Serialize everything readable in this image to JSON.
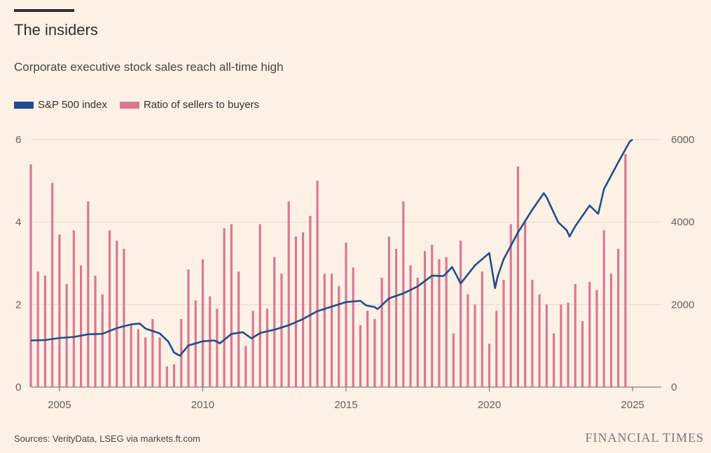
{
  "title": "The insiders",
  "subtitle": "Corporate executive stock sales reach all-time high",
  "source": "Sources: VerityData, LSEG via markets.ft.com",
  "brand": "FINANCIAL TIMES",
  "colors": {
    "background": "#fdf1e5",
    "sp500": "#1f4e8c",
    "ratio": "#d9788f",
    "grid": "#e6d9cc"
  },
  "chart_data": {
    "type": "bar",
    "legend_position": "top-left",
    "series": [
      {
        "name": "S&P 500 index",
        "type": "line",
        "axis": "right",
        "x": [
          2004.0,
          2004.5,
          2005.0,
          2005.5,
          2006.0,
          2006.5,
          2007.0,
          2007.5,
          2007.8,
          2008.0,
          2008.5,
          2008.8,
          2009.0,
          2009.2,
          2009.5,
          2010.0,
          2010.4,
          2010.6,
          2011.0,
          2011.4,
          2011.7,
          2012.0,
          2012.5,
          2013.0,
          2013.5,
          2014.0,
          2014.5,
          2015.0,
          2015.5,
          2015.7,
          2016.0,
          2016.1,
          2016.5,
          2017.0,
          2017.5,
          2018.0,
          2018.4,
          2018.7,
          2018.9,
          2019.0,
          2019.5,
          2020.0,
          2020.2,
          2020.3,
          2020.5,
          2021.0,
          2021.5,
          2021.9,
          2022.0,
          2022.4,
          2022.7,
          2022.8,
          2023.0,
          2023.5,
          2023.8,
          2024.0,
          2024.5,
          2024.9,
          2025.0
        ],
        "values": [
          1130,
          1140,
          1190,
          1215,
          1280,
          1290,
          1430,
          1520,
          1540,
          1420,
          1300,
          1100,
          840,
          760,
          1010,
          1110,
          1130,
          1060,
          1290,
          1330,
          1180,
          1310,
          1390,
          1500,
          1650,
          1840,
          1950,
          2060,
          2090,
          1980,
          1940,
          1890,
          2150,
          2270,
          2440,
          2700,
          2690,
          2910,
          2650,
          2510,
          2950,
          3250,
          2400,
          2700,
          3100,
          3750,
          4300,
          4700,
          4600,
          4000,
          3800,
          3650,
          3900,
          4400,
          4200,
          4800,
          5450,
          5950,
          6000
        ]
      },
      {
        "name": "Ratio of sellers to buyers",
        "type": "bar",
        "axis": "left",
        "x": [
          2004.0,
          2004.25,
          2004.5,
          2004.75,
          2005.0,
          2005.25,
          2005.5,
          2005.75,
          2006.0,
          2006.25,
          2006.5,
          2006.75,
          2007.0,
          2007.25,
          2007.5,
          2007.75,
          2008.0,
          2008.25,
          2008.5,
          2008.75,
          2009.0,
          2009.25,
          2009.5,
          2009.75,
          2010.0,
          2010.25,
          2010.5,
          2010.75,
          2011.0,
          2011.25,
          2011.5,
          2011.75,
          2012.0,
          2012.25,
          2012.5,
          2012.75,
          2013.0,
          2013.25,
          2013.5,
          2013.75,
          2014.0,
          2014.25,
          2014.5,
          2014.75,
          2015.0,
          2015.25,
          2015.5,
          2015.75,
          2016.0,
          2016.25,
          2016.5,
          2016.75,
          2017.0,
          2017.25,
          2017.5,
          2017.75,
          2018.0,
          2018.25,
          2018.5,
          2018.75,
          2019.0,
          2019.25,
          2019.5,
          2019.75,
          2020.0,
          2020.25,
          2020.5,
          2020.75,
          2021.0,
          2021.25,
          2021.5,
          2021.75,
          2022.0,
          2022.25,
          2022.5,
          2022.75,
          2023.0,
          2023.25,
          2023.5,
          2023.75,
          2024.0,
          2024.25,
          2024.5,
          2024.75
        ],
        "values": [
          5.4,
          2.8,
          2.7,
          4.95,
          3.7,
          2.5,
          3.8,
          2.95,
          4.5,
          2.7,
          2.25,
          3.8,
          3.55,
          3.35,
          1.5,
          1.4,
          1.2,
          1.65,
          1.2,
          0.5,
          0.55,
          1.65,
          2.85,
          2.1,
          3.1,
          2.2,
          1.9,
          3.85,
          3.95,
          2.8,
          1.0,
          1.85,
          3.95,
          1.9,
          3.15,
          2.75,
          4.5,
          3.65,
          3.75,
          4.15,
          5.0,
          2.75,
          2.75,
          2.45,
          3.5,
          2.9,
          1.5,
          1.85,
          1.65,
          2.65,
          3.65,
          3.35,
          4.5,
          2.95,
          2.65,
          3.3,
          3.45,
          3.1,
          3.15,
          1.3,
          3.55,
          2.25,
          2.0,
          2.8,
          1.05,
          1.85,
          2.6,
          3.95,
          5.35,
          4.0,
          2.6,
          2.25,
          2.0,
          1.3,
          2.0,
          2.05,
          2.5,
          1.6,
          2.55,
          2.35,
          3.8,
          2.75,
          3.35,
          5.65
        ]
      }
    ],
    "xlim": [
      2004.0,
      2026.0
    ],
    "x_ticks": [
      "2005",
      "2010",
      "2015",
      "2020",
      "2025"
    ],
    "y_left": {
      "ylim": [
        0,
        6
      ],
      "ticks": [
        "0",
        "2",
        "4",
        "6"
      ]
    },
    "y_right": {
      "ylim": [
        0,
        6000
      ],
      "ticks": [
        "0",
        "2000",
        "4000",
        "6000"
      ]
    },
    "grid": true
  }
}
